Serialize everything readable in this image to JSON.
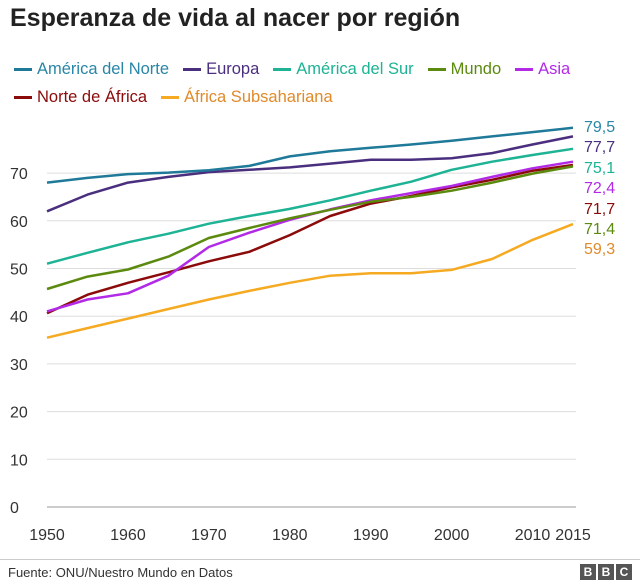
{
  "chart_data": {
    "type": "line",
    "title": "Esperanza de vida al nacer por región",
    "xlabel": "",
    "ylabel": "",
    "xlim": [
      1950,
      2015
    ],
    "ylim": [
      0,
      80
    ],
    "grid": true,
    "legend": "top",
    "x_ticks": [
      "1950",
      "1960",
      "1970",
      "1980",
      "1990",
      "2000",
      "2010",
      "2015"
    ],
    "y_ticks": [
      "0",
      "10",
      "20",
      "30",
      "40",
      "50",
      "60",
      "70"
    ],
    "x": [
      1950,
      1955,
      1960,
      1965,
      1970,
      1975,
      1980,
      1985,
      1990,
      1995,
      2000,
      2005,
      2010,
      2015
    ],
    "series": [
      {
        "name": "América del Norte",
        "color": "#1f7a99",
        "label_color": "#2a86a6",
        "end_label": "79,5",
        "values": [
          68.0,
          69.0,
          69.8,
          70.1,
          70.6,
          71.5,
          73.5,
          74.6,
          75.3,
          76.0,
          76.8,
          77.7,
          78.6,
          79.5
        ]
      },
      {
        "name": "Europa",
        "color": "#4b2f7f",
        "label_color": "#4b2f7f",
        "end_label": "77,7",
        "values": [
          62.0,
          65.5,
          68.0,
          69.2,
          70.2,
          70.7,
          71.2,
          72.0,
          72.8,
          72.8,
          73.1,
          74.2,
          76.0,
          77.7
        ]
      },
      {
        "name": "América del Sur",
        "color": "#1db394",
        "label_color": "#1db394",
        "end_label": "75,1",
        "values": [
          51.0,
          53.3,
          55.5,
          57.3,
          59.4,
          61.0,
          62.5,
          64.3,
          66.3,
          68.2,
          70.7,
          72.4,
          73.8,
          75.1
        ]
      },
      {
        "name": "Mundo",
        "color": "#5b8a0f",
        "label_color": "#5b8a0f",
        "end_label": "71,4",
        "values": [
          45.7,
          48.3,
          49.8,
          52.5,
          56.4,
          58.5,
          60.5,
          62.3,
          64.0,
          65.0,
          66.3,
          68.0,
          69.9,
          71.4
        ]
      },
      {
        "name": "Asia",
        "color": "#b22ae6",
        "label_color": "#b22ae6",
        "end_label": "72,4",
        "values": [
          41.0,
          43.5,
          44.8,
          48.5,
          54.5,
          57.5,
          60.2,
          62.4,
          64.3,
          65.8,
          67.3,
          69.2,
          71.0,
          72.4
        ]
      },
      {
        "name": "Norte de África",
        "color": "#8b0a0a",
        "label_color": "#8b0a0a",
        "end_label": "71,7",
        "values": [
          40.6,
          44.5,
          47.0,
          49.2,
          51.5,
          53.5,
          57.0,
          61.0,
          63.6,
          65.2,
          67.0,
          68.6,
          70.5,
          71.7
        ]
      },
      {
        "name": "África Subsahariana",
        "color": "#f5aa22",
        "label_color": "#e08a2a",
        "end_label": "59,3",
        "values": [
          35.5,
          37.5,
          39.5,
          41.5,
          43.5,
          45.3,
          47.0,
          48.5,
          49.0,
          49.0,
          49.7,
          52.0,
          56.0,
          59.3
        ]
      }
    ]
  },
  "footer": {
    "source": "Fuente: ONU/Nuestro Mundo en Datos",
    "logo": "BBC"
  }
}
